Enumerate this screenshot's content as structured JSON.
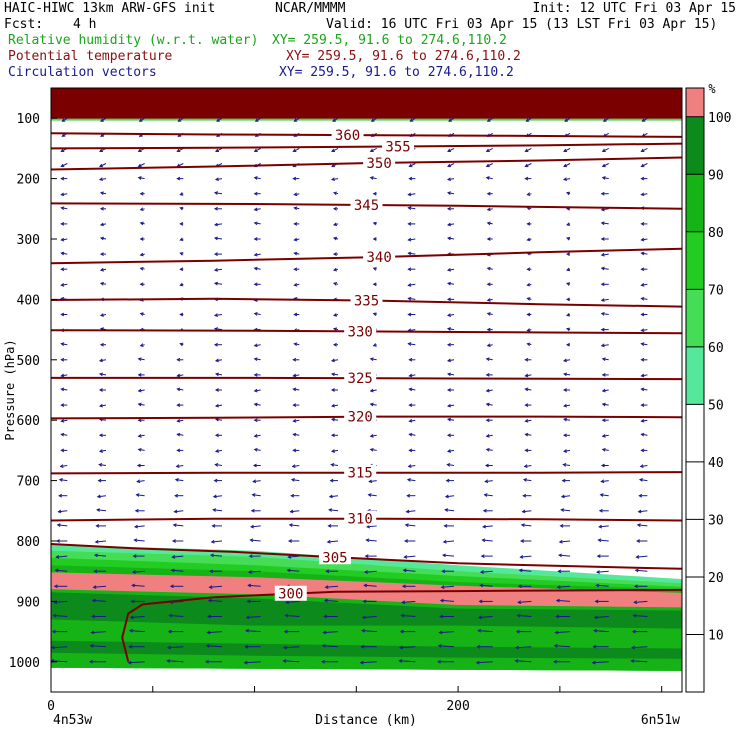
{
  "header": {
    "model": "HAIC-HIWC 13km ARW-GFS init",
    "org": "NCAR/MMMM",
    "init": "Init: 12 UTC Fri 03 Apr 15",
    "fcst_label": "Fcst:",
    "fcst_value": "4 h",
    "valid": "Valid: 16 UTC Fri 03 Apr 15 (13 LST Fri 03 Apr 15)",
    "fields": [
      {
        "label": "Relative humidity (w.r.t. water)",
        "xy": "XY= 259.5, 91.6 to 274.6,110.2",
        "color": "#1aa51a"
      },
      {
        "label": "Potential temperature",
        "xy": "XY= 259.5, 91.6 to 274.6,110.2",
        "color": "#8b1010"
      },
      {
        "label": "Circulation vectors",
        "xy": "XY= 259.5, 91.6 to 274.6,110.2",
        "color": "#1a1a8c"
      }
    ]
  },
  "chart_data": {
    "type": "contour",
    "ylabel": "Pressure (hPa)",
    "xlabel": "Distance (km)",
    "x_ticks": [
      0,
      200
    ],
    "x_range": [
      0,
      310
    ],
    "y_ticks": [
      100,
      200,
      300,
      400,
      500,
      600,
      700,
      800,
      900,
      1000
    ],
    "y_range": [
      1050,
      50
    ],
    "left_endpoint": "4n53w",
    "right_endpoint": "6n51w",
    "colorbar": {
      "unit": "%",
      "ticks": [
        10,
        20,
        30,
        40,
        50,
        60,
        70,
        80,
        90,
        100
      ],
      "bands": [
        {
          "from": 0,
          "to": 50,
          "color": "#ffffff"
        },
        {
          "from": 50,
          "to": 60,
          "color": "#55e89a"
        },
        {
          "from": 60,
          "to": 70,
          "color": "#44dd55"
        },
        {
          "from": 70,
          "to": 80,
          "color": "#22cc22"
        },
        {
          "from": 80,
          "to": 90,
          "color": "#16b316"
        },
        {
          "from": 90,
          "to": 100,
          "color": "#0c8a1c"
        },
        {
          "from": 100,
          "to": 105,
          "color": "#f08080"
        }
      ],
      "top_color": "#7a0000"
    },
    "theta_contours": [
      {
        "label": "360",
        "points": [
          [
            0,
            125
          ],
          [
            80,
            127
          ],
          [
            150,
            128
          ],
          [
            220,
            129
          ],
          [
            310,
            131
          ]
        ]
      },
      {
        "label": "355",
        "points": [
          [
            0,
            150
          ],
          [
            80,
            149
          ],
          [
            160,
            147
          ],
          [
            240,
            145
          ],
          [
            310,
            142
          ]
        ]
      },
      {
        "label": "350",
        "points": [
          [
            0,
            185
          ],
          [
            80,
            180
          ],
          [
            160,
            174
          ],
          [
            240,
            170
          ],
          [
            310,
            165
          ]
        ]
      },
      {
        "label": "345",
        "points": [
          [
            0,
            241
          ],
          [
            100,
            242
          ],
          [
            200,
            245
          ],
          [
            310,
            250
          ]
        ]
      },
      {
        "label": "340",
        "points": [
          [
            0,
            340
          ],
          [
            80,
            336
          ],
          [
            160,
            330
          ],
          [
            240,
            322
          ],
          [
            310,
            316
          ]
        ]
      },
      {
        "label": "335",
        "points": [
          [
            0,
            401
          ],
          [
            80,
            399
          ],
          [
            160,
            402
          ],
          [
            240,
            408
          ],
          [
            310,
            412
          ]
        ]
      },
      {
        "label": "330",
        "points": [
          [
            0,
            451
          ],
          [
            100,
            452
          ],
          [
            200,
            454
          ],
          [
            310,
            456
          ]
        ]
      },
      {
        "label": "325",
        "points": [
          [
            0,
            530
          ],
          [
            100,
            530
          ],
          [
            200,
            531
          ],
          [
            310,
            532
          ]
        ]
      },
      {
        "label": "320",
        "points": [
          [
            0,
            597
          ],
          [
            80,
            596
          ],
          [
            160,
            594
          ],
          [
            240,
            594
          ],
          [
            310,
            595
          ]
        ]
      },
      {
        "label": "315",
        "points": [
          [
            0,
            688
          ],
          [
            80,
            687
          ],
          [
            160,
            687
          ],
          [
            240,
            687
          ],
          [
            310,
            686
          ]
        ]
      },
      {
        "label": "310",
        "points": [
          [
            0,
            766
          ],
          [
            80,
            763
          ],
          [
            160,
            763
          ],
          [
            240,
            764
          ],
          [
            310,
            766
          ]
        ]
      },
      {
        "label": "305",
        "points": [
          [
            0,
            805
          ],
          [
            40,
            812
          ],
          [
            90,
            818
          ],
          [
            140,
            827
          ],
          [
            200,
            837
          ],
          [
            260,
            842
          ],
          [
            310,
            846
          ]
        ]
      },
      {
        "label": "300",
        "points": [
          [
            38,
            1000
          ],
          [
            35,
            960
          ],
          [
            38,
            920
          ],
          [
            45,
            905
          ],
          [
            80,
            893
          ],
          [
            140,
            884
          ],
          [
            200,
            883
          ],
          [
            250,
            882
          ],
          [
            310,
            881
          ]
        ]
      }
    ]
  }
}
